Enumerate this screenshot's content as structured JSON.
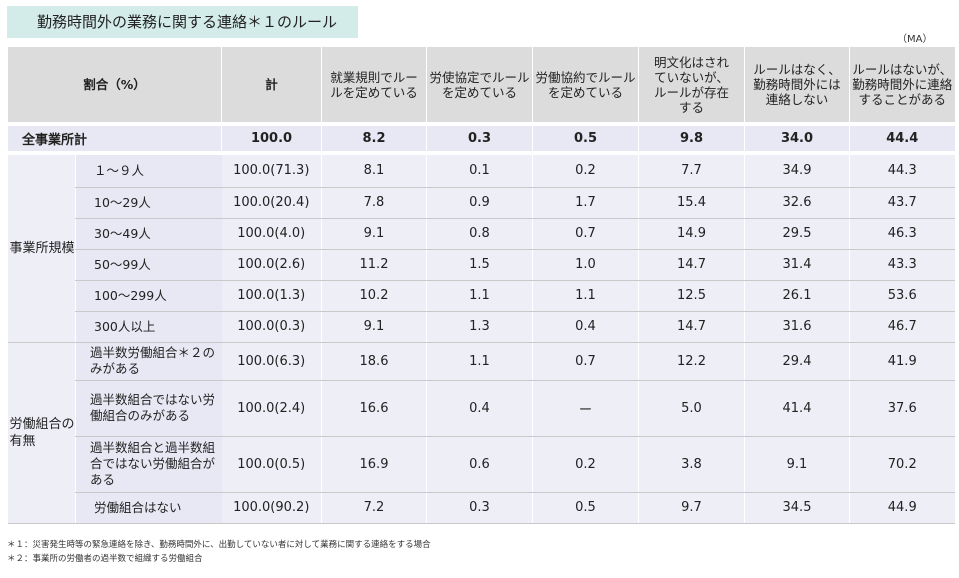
{
  "title": "勤務時間外の業務に関する連絡＊１のルール",
  "ma_label": "（MA）",
  "header": {
    "ratio": "割合（%）",
    "total": "計",
    "cols": [
      "就業規則でルールを定めている",
      "労使協定でルールを定めている",
      "労働協約でルールを定めている",
      "明文化はされていないが、ルールが存在する",
      "ルールはなく、勤務時間外には連絡しない",
      "ルールはないが、勤務時間外に連絡することがある"
    ]
  },
  "overall": {
    "label": "全事業所計",
    "total": "100.0",
    "values": [
      "8.2",
      "0.3",
      "0.5",
      "9.8",
      "34.0",
      "44.4"
    ]
  },
  "groups": [
    {
      "label": "事業所規模",
      "rows": [
        {
          "label": "１～９人",
          "total": "100.0(71.3)",
          "values": [
            "8.1",
            "0.1",
            "0.2",
            "7.7",
            "34.9",
            "44.3"
          ]
        },
        {
          "label": "10～29人",
          "total": "100.0(20.4)",
          "values": [
            "7.8",
            "0.9",
            "1.7",
            "15.4",
            "32.6",
            "43.7"
          ]
        },
        {
          "label": "30～49人",
          "total": "100.0(4.0)",
          "values": [
            "9.1",
            "0.8",
            "0.7",
            "14.9",
            "29.5",
            "46.3"
          ]
        },
        {
          "label": "50～99人",
          "total": "100.0(2.6)",
          "values": [
            "11.2",
            "1.5",
            "1.0",
            "14.7",
            "31.4",
            "43.3"
          ]
        },
        {
          "label": "100～299人",
          "total": "100.0(1.3)",
          "values": [
            "10.2",
            "1.1",
            "1.1",
            "12.5",
            "26.1",
            "53.6"
          ]
        },
        {
          "label": "300人以上",
          "total": "100.0(0.3)",
          "values": [
            "9.1",
            "1.3",
            "0.4",
            "14.7",
            "31.6",
            "46.7"
          ]
        }
      ]
    },
    {
      "label": "労働組合の有無",
      "rows": [
        {
          "label": "過半数労働組合＊２のみがある",
          "total": "100.0(6.3)",
          "values": [
            "18.6",
            "1.1",
            "0.7",
            "12.2",
            "29.4",
            "41.9"
          ]
        },
        {
          "label": "過半数組合ではない労働組合のみがある",
          "total": "100.0(2.4)",
          "values": [
            "16.6",
            "0.4",
            "ー",
            "5.0",
            "41.4",
            "37.6"
          ]
        },
        {
          "label": "過半数組合と過半数組合ではない労働組合がある",
          "total": "100.0(0.5)",
          "values": [
            "16.9",
            "0.6",
            "0.2",
            "3.8",
            "9.1",
            "70.2"
          ]
        },
        {
          "label": "労働組合はない",
          "total": "100.0(90.2)",
          "values": [
            "7.2",
            "0.3",
            "0.5",
            "9.7",
            "34.5",
            "44.9"
          ]
        }
      ]
    }
  ],
  "notes": [
    "＊１：災害発生時等の緊急連絡を除き、勤務時間外に、出勤していない者に対して業務に関する連絡をする場合",
    "＊２：事業所の労働者の過半数で組織する労働組合"
  ]
}
